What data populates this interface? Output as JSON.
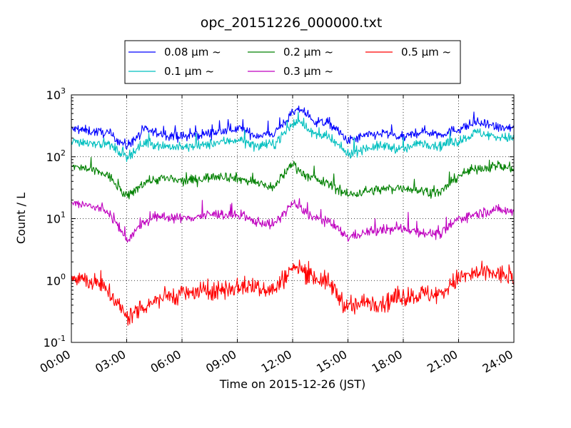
{
  "chart_data": {
    "type": "line",
    "title": "opc_20151226_000000.txt",
    "xlabel": "Time on 2015-12-26 (JST)",
    "ylabel": "Count / L",
    "yscale": "log",
    "ylim": [
      0.1,
      1000
    ],
    "y_ticks": [
      {
        "value": 0.1,
        "base": "10",
        "exp": "-1"
      },
      {
        "value": 1,
        "base": "10",
        "exp": "0"
      },
      {
        "value": 10,
        "base": "10",
        "exp": "1"
      },
      {
        "value": 100,
        "base": "10",
        "exp": "2"
      },
      {
        "value": 1000,
        "base": "10",
        "exp": "3"
      }
    ],
    "xlim": [
      "00:00",
      "24:00"
    ],
    "x_ticks": [
      "00:00",
      "03:00",
      "06:00",
      "09:00",
      "12:00",
      "15:00",
      "18:00",
      "21:00",
      "24:00"
    ],
    "grid": true,
    "legend_position": "top-center",
    "series": [
      {
        "name": "0.08 μm ~",
        "color": "#0000ff",
        "x": [
          "00:00",
          "01:00",
          "02:00",
          "03:00",
          "04:00",
          "05:00",
          "06:00",
          "07:00",
          "08:00",
          "09:00",
          "10:00",
          "11:00",
          "12:00",
          "12:30",
          "13:00",
          "14:00",
          "15:00",
          "16:00",
          "17:00",
          "18:00",
          "19:00",
          "20:00",
          "21:00",
          "22:00",
          "23:00",
          "24:00"
        ],
        "y": [
          280,
          260,
          240,
          150,
          270,
          230,
          210,
          230,
          250,
          290,
          220,
          240,
          500,
          600,
          380,
          350,
          180,
          220,
          240,
          200,
          260,
          230,
          280,
          360,
          300,
          280
        ]
      },
      {
        "name": "0.1 μm ~",
        "color": "#00bfbf",
        "x": [
          "00:00",
          "01:00",
          "02:00",
          "03:00",
          "04:00",
          "05:00",
          "06:00",
          "07:00",
          "08:00",
          "09:00",
          "10:00",
          "11:00",
          "12:00",
          "12:30",
          "13:00",
          "14:00",
          "15:00",
          "16:00",
          "17:00",
          "18:00",
          "19:00",
          "20:00",
          "21:00",
          "22:00",
          "23:00",
          "24:00"
        ],
        "y": [
          180,
          170,
          160,
          100,
          170,
          150,
          140,
          150,
          170,
          190,
          150,
          160,
          340,
          380,
          240,
          200,
          110,
          140,
          150,
          130,
          170,
          150,
          180,
          250,
          210,
          200
        ]
      },
      {
        "name": "0.2 μm ~",
        "color": "#008000",
        "x": [
          "00:00",
          "01:00",
          "02:00",
          "03:00",
          "04:00",
          "05:00",
          "06:00",
          "07:00",
          "08:00",
          "09:00",
          "10:00",
          "11:00",
          "12:00",
          "12:30",
          "13:00",
          "14:00",
          "15:00",
          "16:00",
          "17:00",
          "18:00",
          "19:00",
          "20:00",
          "21:00",
          "22:00",
          "23:00",
          "24:00"
        ],
        "y": [
          70,
          62,
          50,
          22,
          40,
          45,
          40,
          44,
          50,
          45,
          38,
          32,
          80,
          55,
          45,
          36,
          24,
          28,
          30,
          32,
          28,
          26,
          50,
          65,
          70,
          65
        ]
      },
      {
        "name": "0.3 μm ~",
        "color": "#bf00bf",
        "x": [
          "00:00",
          "01:00",
          "02:00",
          "03:00",
          "04:00",
          "05:00",
          "06:00",
          "07:00",
          "08:00",
          "09:00",
          "10:00",
          "11:00",
          "12:00",
          "12:30",
          "13:00",
          "14:00",
          "15:00",
          "16:00",
          "17:00",
          "18:00",
          "19:00",
          "20:00",
          "21:00",
          "22:00",
          "23:00",
          "24:00"
        ],
        "y": [
          18,
          16,
          13,
          4.5,
          9,
          11,
          10,
          11,
          12,
          11,
          9,
          8,
          18,
          14,
          11,
          8.5,
          5,
          6,
          6.5,
          7,
          6,
          5.5,
          10,
          12,
          14,
          13
        ]
      },
      {
        "name": "0.5 μm ~",
        "color": "#ff0000",
        "x": [
          "00:00",
          "01:00",
          "02:00",
          "03:00",
          "04:00",
          "05:00",
          "06:00",
          "07:00",
          "08:00",
          "09:00",
          "10:00",
          "11:00",
          "12:00",
          "12:30",
          "13:00",
          "14:00",
          "15:00",
          "16:00",
          "17:00",
          "18:00",
          "19:00",
          "20:00",
          "21:00",
          "22:00",
          "23:00",
          "24:00"
        ],
        "y": [
          1.2,
          1.0,
          0.7,
          0.25,
          0.4,
          0.55,
          0.6,
          0.65,
          0.7,
          0.8,
          0.8,
          0.7,
          1.6,
          1.5,
          1.2,
          0.9,
          0.35,
          0.45,
          0.45,
          0.55,
          0.6,
          0.6,
          1.1,
          1.3,
          1.3,
          1.1
        ]
      }
    ]
  }
}
